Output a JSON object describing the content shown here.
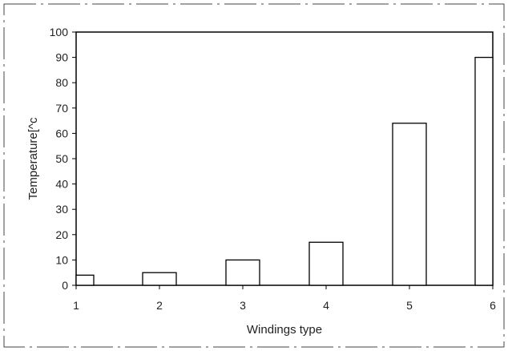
{
  "chart_data": {
    "type": "bar",
    "categories": [
      "1",
      "2",
      "3",
      "4",
      "5",
      "6"
    ],
    "values": [
      4,
      5,
      10,
      17,
      64,
      90
    ],
    "title": "",
    "xlabel": "Windings type",
    "ylabel": "Temperature[^c",
    "ylim": [
      0,
      100
    ],
    "yticks": [
      "0",
      "10",
      "20",
      "30",
      "40",
      "50",
      "60",
      "70",
      "80",
      "90",
      "100"
    ],
    "grid": false,
    "bar_fill": "#ffffff",
    "bar_stroke": "#000000"
  }
}
